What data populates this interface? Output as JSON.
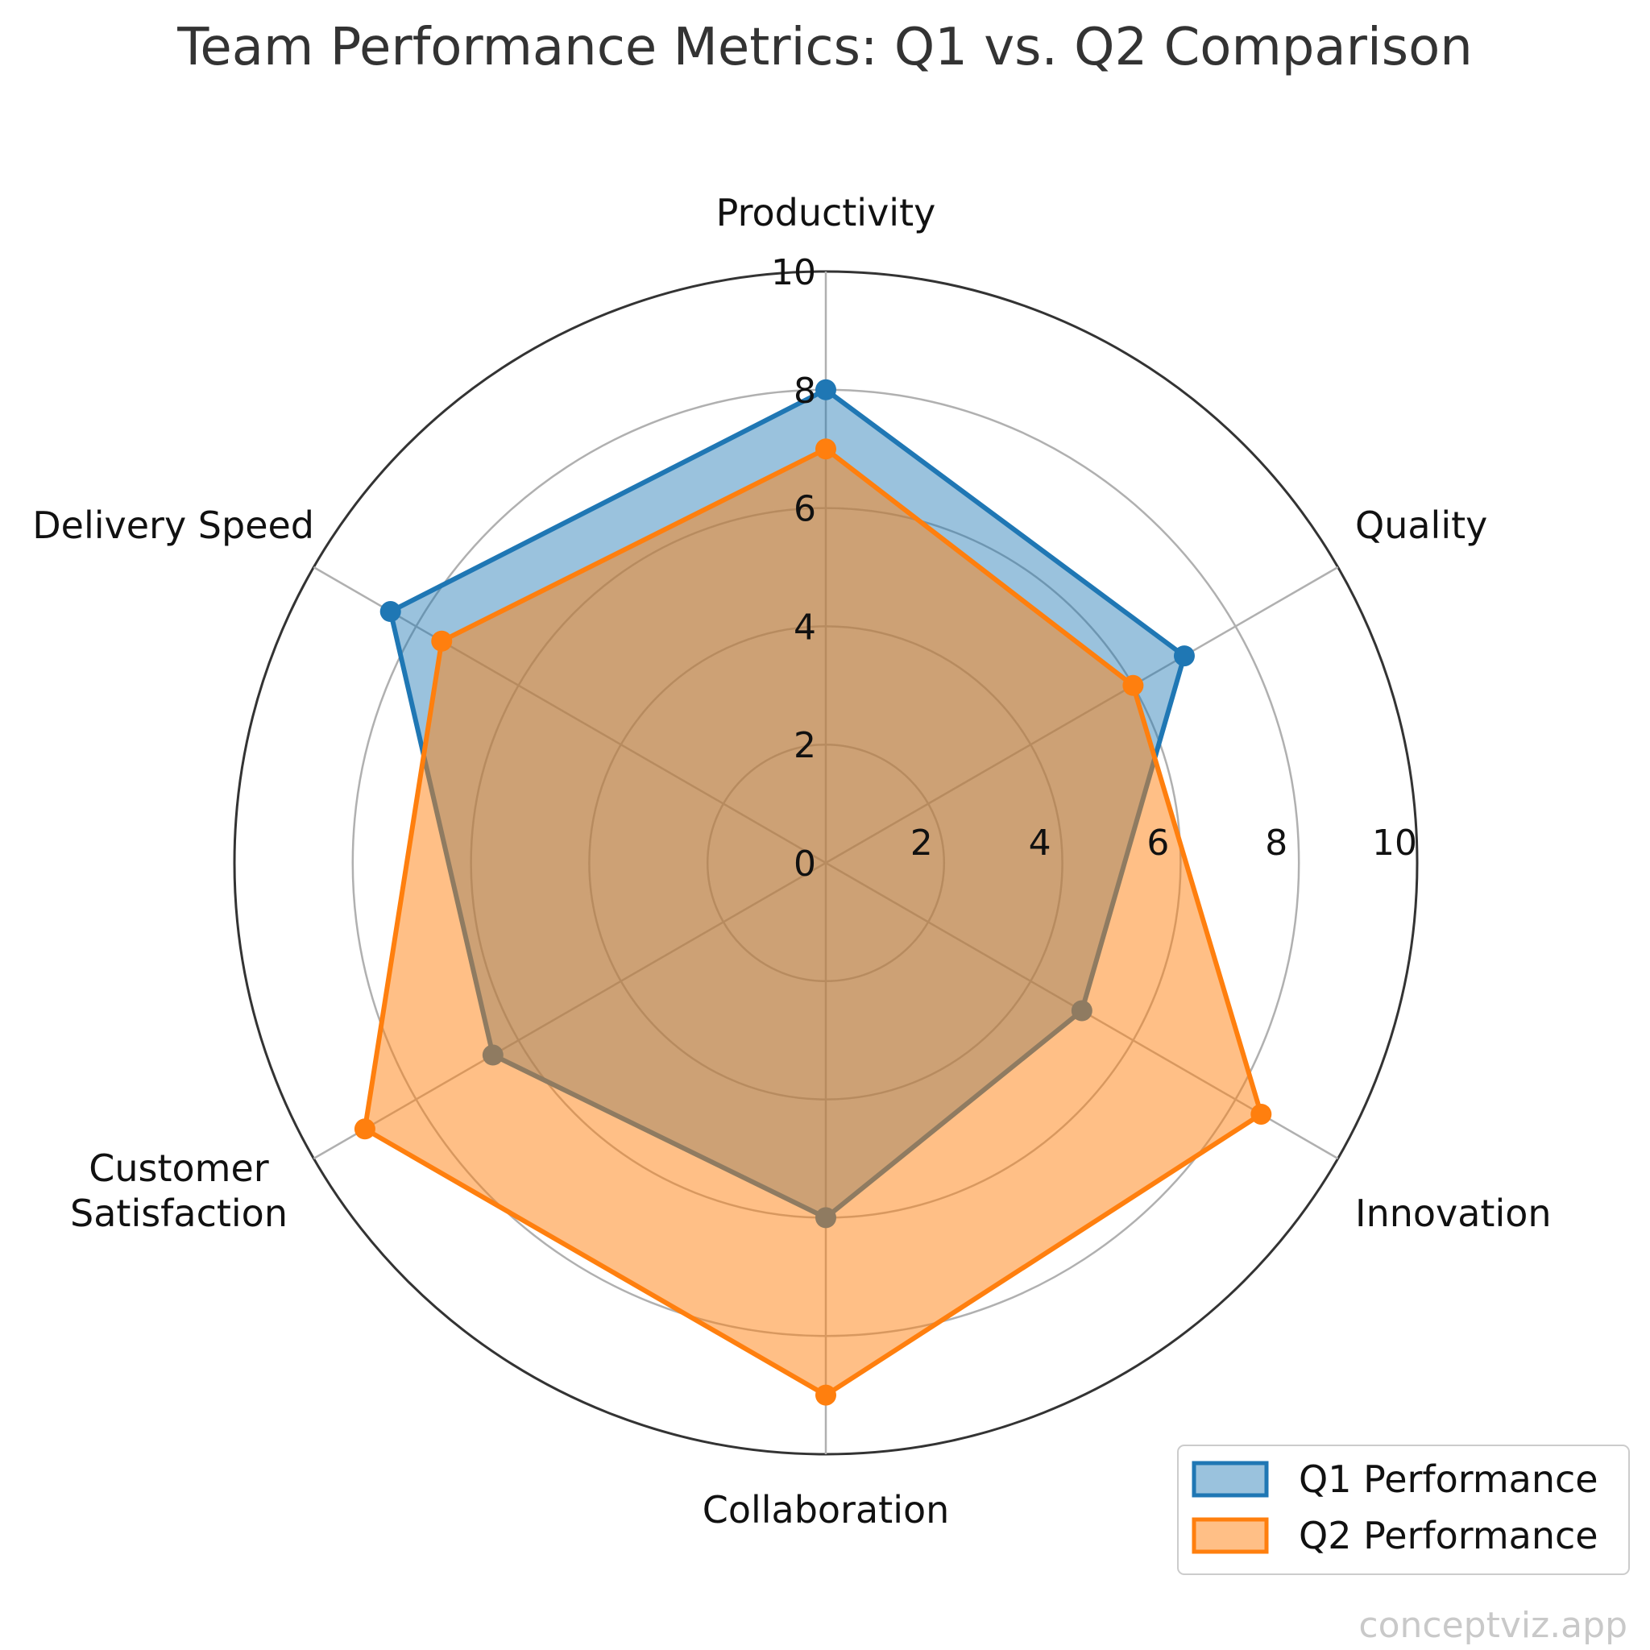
{
  "chart_data": {
    "type": "radar",
    "title": "Team Performance Metrics: Q1 vs. Q2 Comparison",
    "categories": [
      "Productivity",
      "Quality",
      "Innovation",
      "Collaboration",
      "Customer Satisfaction",
      "Delivery Speed"
    ],
    "category_lines": [
      [
        "Productivity"
      ],
      [
        "Quality"
      ],
      [
        "Innovation"
      ],
      [
        "Collaboration"
      ],
      [
        "Customer",
        "Satisfaction"
      ],
      [
        "Delivery Speed"
      ]
    ],
    "rlim": [
      0,
      10
    ],
    "rticks": [
      "0",
      "2",
      "4",
      "6",
      "8",
      "10"
    ],
    "grid": true,
    "legend_position": "bottom-right",
    "series": [
      {
        "name": "Q1 Performance",
        "color": "#1f77b4",
        "values": [
          8,
          7,
          5,
          6,
          6.5,
          8.5
        ]
      },
      {
        "name": "Q2 Performance",
        "color": "#ff7f0e",
        "values": [
          7,
          6,
          8.5,
          9,
          9,
          7.5
        ]
      }
    ]
  },
  "watermark": "conceptviz.app"
}
